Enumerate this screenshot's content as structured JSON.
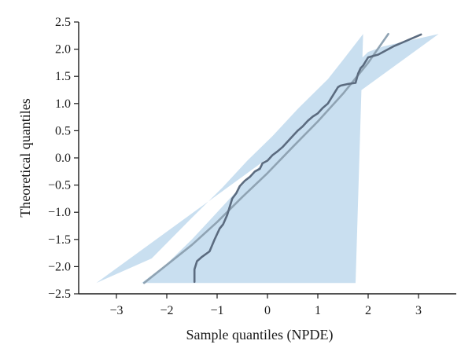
{
  "chart_data": {
    "type": "line",
    "title": "",
    "xlabel": "Sample quantiles (NPDE)",
    "ylabel": "Theoretical quantiles",
    "xlim": [
      -3.75,
      3.75
    ],
    "ylim": [
      -2.5,
      2.5
    ],
    "x_ticks": [
      -3,
      -2,
      -1,
      0,
      1,
      2,
      3
    ],
    "x_tick_labels": [
      "−3",
      "−2",
      "−1",
      "0",
      "1",
      "2",
      "3"
    ],
    "y_ticks": [
      -2.5,
      -2.0,
      -1.5,
      -1.0,
      -0.5,
      0.0,
      0.5,
      1.0,
      1.5,
      2.0,
      2.5
    ],
    "y_tick_labels": [
      "−2.5",
      "−2.0",
      "−1.5",
      "−1.0",
      "−0.5",
      "0.0",
      "0.5",
      "1.0",
      "1.5",
      "2.0",
      "2.5"
    ],
    "grid": false,
    "colors": {
      "band": "#c9dff0",
      "reference_line": "#8fa3b3",
      "observed_line": "#5b6b7f"
    },
    "prediction_band": {
      "upper": [
        {
          "x": -2.5,
          "y": -2.3
        },
        {
          "x": -2.0,
          "y": -1.95
        },
        {
          "x": -1.5,
          "y": -1.5
        },
        {
          "x": -1.0,
          "y": -1.0
        },
        {
          "x": -0.5,
          "y": -0.5
        },
        {
          "x": 0.0,
          "y": 0.0
        },
        {
          "x": 0.5,
          "y": 0.45
        },
        {
          "x": 1.0,
          "y": 0.95
        },
        {
          "x": 1.5,
          "y": 1.5
        },
        {
          "x": 2.0,
          "y": 1.95
        },
        {
          "x": 2.3,
          "y": 2.05
        },
        {
          "x": 3.4,
          "y": 2.28
        }
      ],
      "lower": [
        {
          "x": -3.4,
          "y": -2.3
        },
        {
          "x": -2.3,
          "y": -1.85
        },
        {
          "x": -1.5,
          "y": -1.1
        },
        {
          "x": -0.9,
          "y": -0.55
        },
        {
          "x": -0.4,
          "y": -0.05
        },
        {
          "x": 0.1,
          "y": 0.4
        },
        {
          "x": 0.6,
          "y": 0.9
        },
        {
          "x": 1.2,
          "y": 1.45
        },
        {
          "x": 1.5,
          "y": 1.8
        },
        {
          "x": 1.9,
          "y": 2.28
        },
        {
          "x": 1.75,
          "y": -2.3
        }
      ]
    },
    "series": [
      {
        "role": "reference",
        "x": [
          -2.45,
          -1.5,
          -1.0,
          -0.5,
          0.0,
          0.5,
          1.0,
          1.5,
          2.0,
          2.4
        ],
        "y": [
          -2.3,
          -1.6,
          -1.18,
          -0.72,
          -0.28,
          0.2,
          0.67,
          1.18,
          1.75,
          2.28
        ]
      },
      {
        "role": "observed",
        "x": [
          -1.45,
          -1.45,
          -1.4,
          -1.3,
          -1.15,
          -1.05,
          -0.95,
          -0.88,
          -0.8,
          -0.75,
          -0.7,
          -0.62,
          -0.55,
          -0.45,
          -0.35,
          -0.25,
          -0.15,
          -0.1,
          0.0,
          0.1,
          0.2,
          0.3,
          0.4,
          0.5,
          0.6,
          0.7,
          0.8,
          0.9,
          1.0,
          1.1,
          1.2,
          1.3,
          1.4,
          1.45,
          1.6,
          1.75,
          1.8,
          1.85,
          1.9,
          2.0,
          2.2,
          2.5,
          2.8,
          3.05
        ],
        "y": [
          -2.28,
          -2.05,
          -1.9,
          -1.82,
          -1.72,
          -1.5,
          -1.3,
          -1.22,
          -1.05,
          -0.9,
          -0.75,
          -0.65,
          -0.52,
          -0.42,
          -0.35,
          -0.25,
          -0.2,
          -0.1,
          -0.05,
          0.05,
          0.12,
          0.2,
          0.3,
          0.4,
          0.5,
          0.58,
          0.68,
          0.76,
          0.82,
          0.92,
          1.0,
          1.15,
          1.3,
          1.33,
          1.36,
          1.38,
          1.55,
          1.65,
          1.7,
          1.85,
          1.9,
          2.05,
          2.17,
          2.27
        ]
      }
    ]
  }
}
